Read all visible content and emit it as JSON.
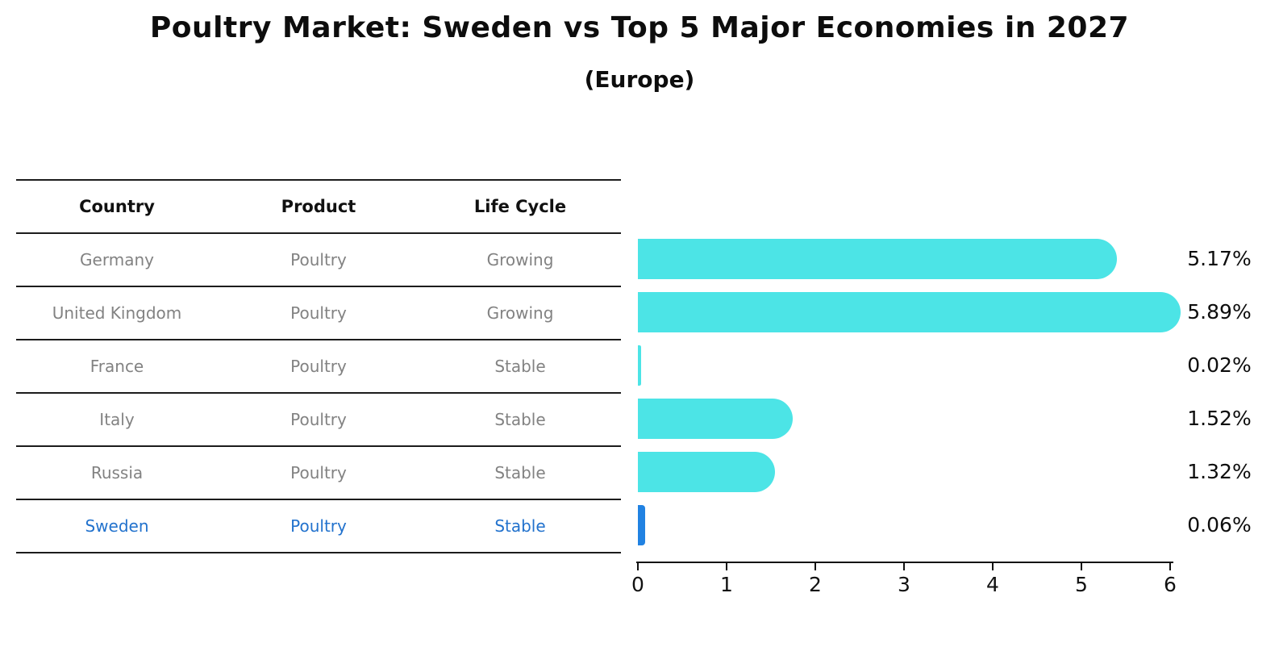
{
  "title": "Poultry Market: Sweden vs Top 5 Major Economies in 2027",
  "subtitle": "(Europe)",
  "table": {
    "headers": [
      "Country",
      "Product",
      "Life Cycle"
    ],
    "rows": [
      {
        "country": "Germany",
        "product": "Poultry",
        "life_cycle": "Growing",
        "highlight": false
      },
      {
        "country": "United Kingdom",
        "product": "Poultry",
        "life_cycle": "Growing",
        "highlight": false
      },
      {
        "country": "France",
        "product": "Poultry",
        "life_cycle": "Stable",
        "highlight": false
      },
      {
        "country": "Italy",
        "product": "Poultry",
        "life_cycle": "Stable",
        "highlight": false
      },
      {
        "country": "Russia",
        "product": "Poultry",
        "life_cycle": "Stable",
        "highlight": false
      },
      {
        "country": "Sweden",
        "product": "Poultry",
        "life_cycle": "Stable",
        "highlight": true
      }
    ]
  },
  "chart_data": {
    "type": "bar",
    "orientation": "horizontal",
    "title": "Poultry Market: Sweden vs Top 5 Major Economies in 2027",
    "subtitle": "(Europe)",
    "categories": [
      "Germany",
      "United Kingdom",
      "France",
      "Italy",
      "Russia",
      "Sweden"
    ],
    "values": [
      5.17,
      5.89,
      0.02,
      1.52,
      1.32,
      0.06
    ],
    "value_labels": [
      "5.17%",
      "5.89%",
      "0.02%",
      "1.52%",
      "1.32%",
      "0.06%"
    ],
    "xlabel": "",
    "ylabel": "",
    "xlim": [
      0,
      6.2
    ],
    "x_ticks": [
      0,
      1,
      2,
      3,
      4,
      5,
      6
    ],
    "grid": false,
    "legend": false,
    "highlight_category": "Sweden"
  },
  "colors": {
    "bar": "#4ce4e6",
    "highlight_bar": "#2182e2",
    "highlight_text": "#2272cd",
    "row_text": "#828282",
    "header_text": "#111111",
    "axis": "#111111"
  }
}
